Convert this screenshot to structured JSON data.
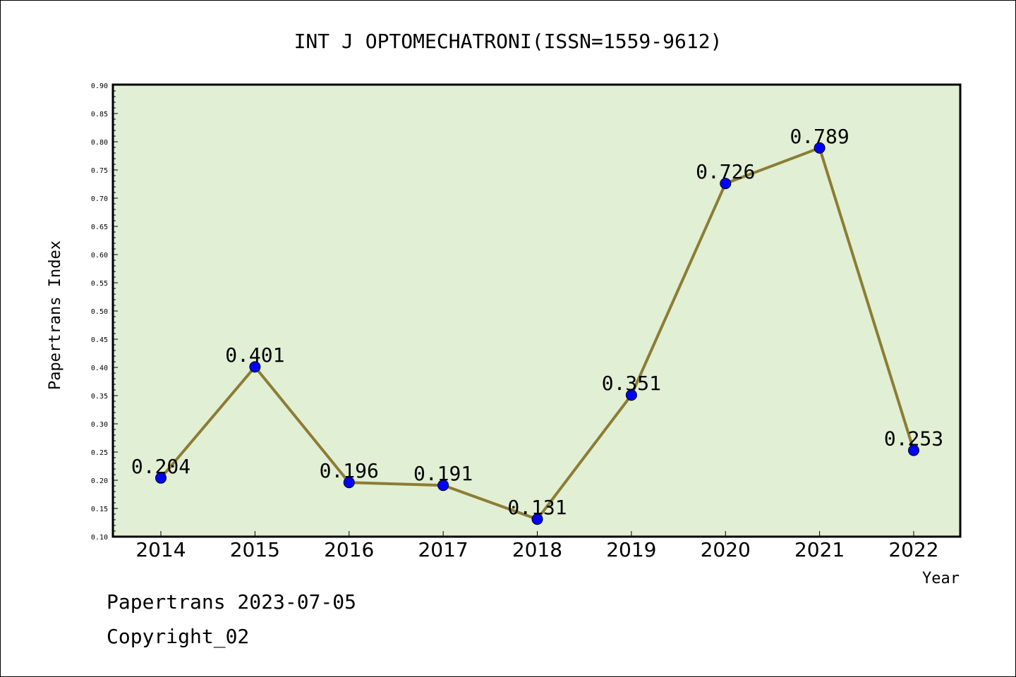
{
  "chart_data": {
    "type": "line",
    "title": "INT J OPTOMECHATRONI(ISSN=1559-9612)",
    "xlabel": "Year",
    "ylabel": "Papertrans Index",
    "categories": [
      "2014",
      "2015",
      "2016",
      "2017",
      "2018",
      "2019",
      "2020",
      "2021",
      "2022"
    ],
    "series": [
      {
        "values": [
          0.204,
          0.401,
          0.196,
          0.191,
          0.131,
          0.351,
          0.726,
          0.789,
          0.253
        ],
        "labels": [
          "0.204",
          "0.401",
          "0.196",
          "0.191",
          "0.131",
          "0.351",
          "0.726",
          "0.789",
          "0.253"
        ]
      }
    ],
    "ylim": [
      0.1,
      0.9
    ],
    "yticks": [
      "0.10",
      "0.15",
      "0.20",
      "0.25",
      "0.30",
      "0.35",
      "0.40",
      "0.45",
      "0.50",
      "0.55",
      "0.60",
      "0.65",
      "0.70",
      "0.75",
      "0.80",
      "0.85",
      "0.90"
    ],
    "grid": false,
    "colors": {
      "plot_background": "#e1efd5",
      "line": "#8c7d33",
      "marker": "#0000ff"
    }
  },
  "footer": {
    "date_line": "Papertrans 2023-07-05",
    "copyright": "Copyright_02"
  }
}
